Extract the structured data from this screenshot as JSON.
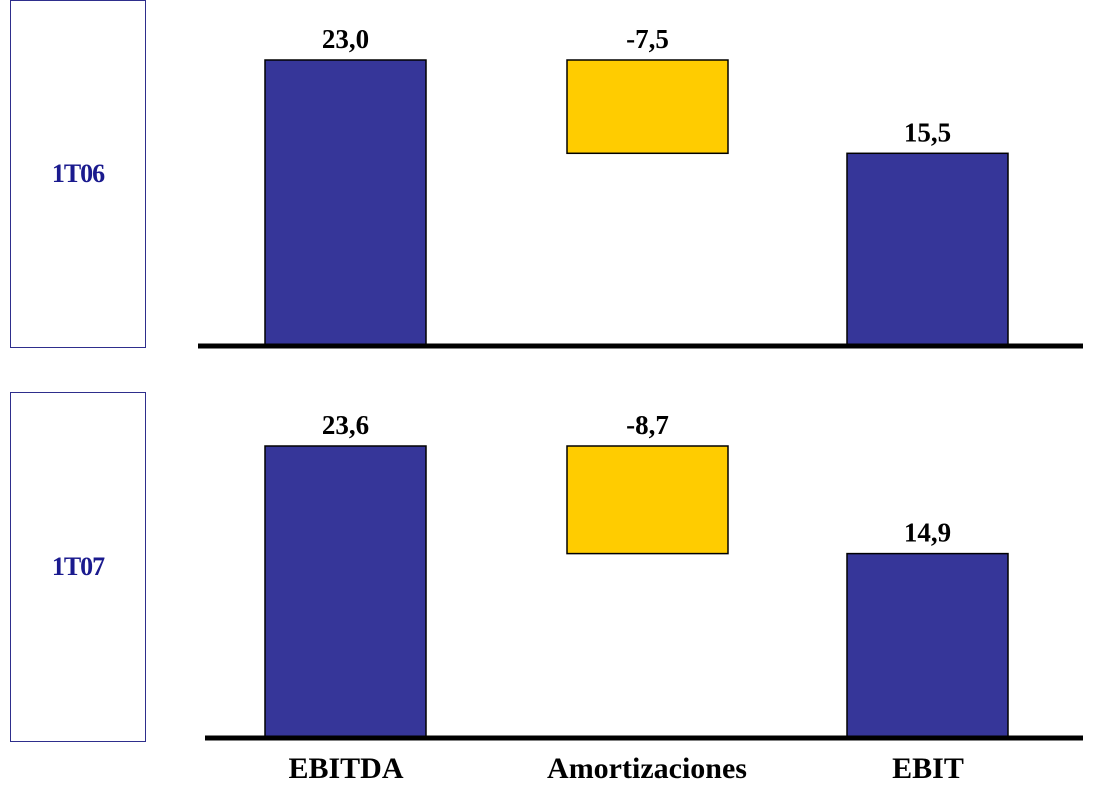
{
  "chart_data": {
    "type": "bar",
    "subtype": "waterfall",
    "categories": [
      "EBITDA",
      "Amortizaciones",
      "EBIT"
    ],
    "panels": [
      {
        "label": "1T06",
        "values": [
          23.0,
          -7.5,
          15.5
        ],
        "value_labels": [
          "23,0",
          "-7,5",
          "15,5"
        ]
      },
      {
        "label": "1T07",
        "values": [
          23.6,
          -8.7,
          14.9
        ],
        "value_labels": [
          "23,6",
          "-8,7",
          "14,9"
        ]
      }
    ],
    "colors": {
      "total": "#363699",
      "negative": "#ffcc00",
      "axis": "#000000",
      "panel_text": "#1a1a8e"
    },
    "grid": false,
    "legend": "none"
  }
}
